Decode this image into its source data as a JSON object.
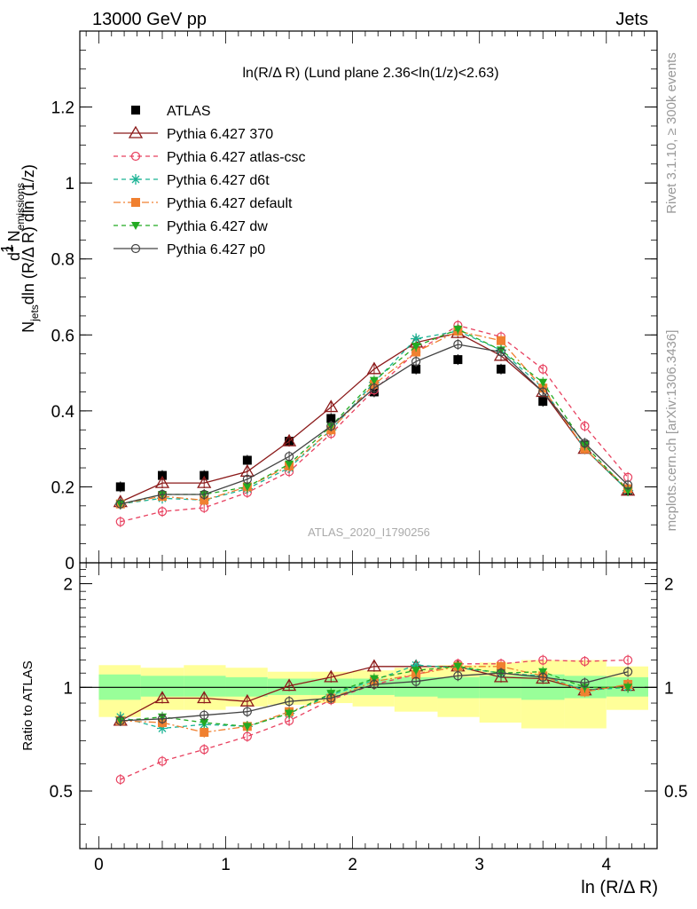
{
  "header": {
    "left_title": "13000 GeV pp",
    "right_title": "Jets",
    "panel_title_main": "ln(R/Δ R) (Lund plane 2.36<ln(1/z)<2.63)"
  },
  "side_labels": {
    "rivet": "Rivet 3.1.10, ≥ 300k events",
    "mcplots": "mcplots.cern.ch [arXiv:1306.3436]"
  },
  "watermark": "ATLAS_2020_I1790256",
  "axes": {
    "xlabel": "ln (R/Δ R)",
    "ylabel_ratio": "Ratio to ATLAS",
    "ylabel_main": "1/N_jets d²N_emissions/dln(R/ΔR) dln(1/z)"
  },
  "chart_data": [
    {
      "type": "line",
      "name": "main",
      "xlim": [
        -0.15,
        4.4
      ],
      "ylim": [
        0,
        1.4
      ],
      "x_ticks": [
        0,
        1,
        2,
        3,
        4
      ],
      "y_ticks": [
        0.2,
        0.4,
        0.6,
        0.8,
        1,
        1.2
      ],
      "y_tick_labels": [
        "0.2",
        "0.4",
        "0.6",
        "0.8",
        "1",
        "1.2"
      ],
      "x": [
        0.17,
        0.5,
        0.83,
        1.17,
        1.5,
        1.83,
        2.17,
        2.5,
        2.83,
        3.17,
        3.5,
        3.83,
        4.17
      ],
      "series": [
        {
          "name": "ATLAS",
          "color": "#000000",
          "marker": "square-filled",
          "style": "none",
          "values": [
            0.2,
            0.23,
            0.23,
            0.27,
            0.32,
            0.38,
            0.45,
            0.51,
            0.535,
            0.51,
            0.425,
            0.31,
            0.19
          ]
        },
        {
          "name": "Pythia 6.427 370",
          "color": "#8b1a1a",
          "marker": "triangle-open",
          "style": "solid",
          "values": [
            0.16,
            0.21,
            0.21,
            0.24,
            0.32,
            0.41,
            0.51,
            0.58,
            0.605,
            0.545,
            0.45,
            0.3,
            0.19
          ]
        },
        {
          "name": "Pythia 6.427 atlas-csc",
          "color": "#e8405f",
          "marker": "circle-open",
          "style": "dashed",
          "values": [
            0.108,
            0.135,
            0.145,
            0.185,
            0.24,
            0.34,
            0.455,
            0.555,
            0.625,
            0.595,
            0.51,
            0.36,
            0.225
          ]
        },
        {
          "name": "Pythia 6.427 d6t",
          "color": "#1ab394",
          "marker": "star",
          "style": "dashed",
          "values": [
            0.155,
            0.17,
            0.165,
            0.195,
            0.25,
            0.35,
            0.475,
            0.59,
            0.61,
            0.56,
            0.46,
            0.3,
            0.19
          ]
        },
        {
          "name": "Pythia 6.427 default",
          "color": "#f08030",
          "marker": "square-filled",
          "style": "dashdot",
          "values": [
            0.155,
            0.175,
            0.165,
            0.2,
            0.255,
            0.35,
            0.47,
            0.555,
            0.61,
            0.585,
            0.46,
            0.3,
            0.195
          ]
        },
        {
          "name": "Pythia 6.427 dw",
          "color": "#22aa22",
          "marker": "triangle-down-filled",
          "style": "dashed",
          "values": [
            0.155,
            0.18,
            0.18,
            0.2,
            0.26,
            0.36,
            0.48,
            0.57,
            0.615,
            0.56,
            0.475,
            0.31,
            0.19
          ]
        },
        {
          "name": "Pythia 6.427 p0",
          "color": "#444444",
          "marker": "circle-open",
          "style": "solid",
          "values": [
            0.155,
            0.18,
            0.18,
            0.22,
            0.28,
            0.36,
            0.46,
            0.53,
            0.575,
            0.555,
            0.45,
            0.315,
            0.205
          ]
        }
      ]
    },
    {
      "type": "line",
      "name": "ratio",
      "ylabel": "Ratio to ATLAS",
      "xlim": [
        -0.15,
        4.4
      ],
      "ylim": [
        0.34,
        2.3
      ],
      "y_ticks": [
        0.5,
        1,
        2
      ],
      "y_tick_labels": [
        "0.5",
        "1",
        "2"
      ],
      "x_edges": [
        0,
        0.33,
        0.67,
        1.0,
        1.33,
        1.67,
        2.0,
        2.33,
        2.67,
        3.0,
        3.33,
        3.67,
        4.0,
        4.33
      ],
      "band_inner": {
        "color": "#99ff99",
        "lo": [
          0.92,
          0.94,
          0.94,
          0.94,
          0.95,
          0.95,
          0.95,
          0.94,
          0.93,
          0.93,
          0.92,
          0.93,
          0.94
        ],
        "hi": [
          1.09,
          1.08,
          1.08,
          1.07,
          1.06,
          1.06,
          1.06,
          1.07,
          1.07,
          1.08,
          1.09,
          1.08,
          1.07
        ]
      },
      "band_outer": {
        "color": "#ffff99",
        "lo": [
          0.82,
          0.86,
          0.86,
          0.88,
          0.89,
          0.9,
          0.88,
          0.85,
          0.82,
          0.79,
          0.76,
          0.76,
          0.86
        ],
        "hi": [
          1.16,
          1.14,
          1.16,
          1.14,
          1.11,
          1.11,
          1.12,
          1.14,
          1.16,
          1.18,
          1.2,
          1.2,
          1.15
        ]
      },
      "x": [
        0.17,
        0.5,
        0.83,
        1.17,
        1.5,
        1.83,
        2.17,
        2.5,
        2.83,
        3.17,
        3.5,
        3.83,
        4.17
      ],
      "series": [
        {
          "name": "Pythia 6.427 370",
          "color": "#8b1a1a",
          "marker": "triangle-open",
          "style": "solid",
          "values": [
            0.8,
            0.93,
            0.93,
            0.91,
            1.01,
            1.07,
            1.15,
            1.15,
            1.15,
            1.07,
            1.06,
            0.98,
            1.01
          ]
        },
        {
          "name": "Pythia 6.427 atlas-csc",
          "color": "#e8405f",
          "marker": "circle-open",
          "style": "dashed",
          "values": [
            0.54,
            0.61,
            0.66,
            0.72,
            0.8,
            0.92,
            1.02,
            1.09,
            1.17,
            1.17,
            1.2,
            1.19,
            1.2
          ]
        },
        {
          "name": "Pythia 6.427 d6t",
          "color": "#1ab394",
          "marker": "star",
          "style": "dashed",
          "values": [
            0.82,
            0.76,
            0.78,
            0.77,
            0.84,
            0.95,
            1.05,
            1.16,
            1.14,
            1.1,
            1.08,
            0.98,
            1.0
          ]
        },
        {
          "name": "Pythia 6.427 default",
          "color": "#f08030",
          "marker": "square-filled",
          "style": "dashdot",
          "values": [
            0.8,
            0.79,
            0.74,
            0.77,
            0.85,
            0.93,
            1.04,
            1.09,
            1.15,
            1.15,
            1.08,
            0.97,
            1.02
          ]
        },
        {
          "name": "Pythia 6.427 dw",
          "color": "#22aa22",
          "marker": "triangle-down-filled",
          "style": "dashed",
          "values": [
            0.8,
            0.82,
            0.79,
            0.77,
            0.84,
            0.96,
            1.06,
            1.12,
            1.15,
            1.1,
            1.11,
            1.0,
            1.0
          ]
        },
        {
          "name": "Pythia 6.427 p0",
          "color": "#444444",
          "marker": "circle-open",
          "style": "solid",
          "values": [
            0.8,
            0.81,
            0.83,
            0.85,
            0.91,
            0.93,
            1.02,
            1.04,
            1.08,
            1.1,
            1.07,
            1.03,
            1.11
          ]
        }
      ]
    }
  ]
}
